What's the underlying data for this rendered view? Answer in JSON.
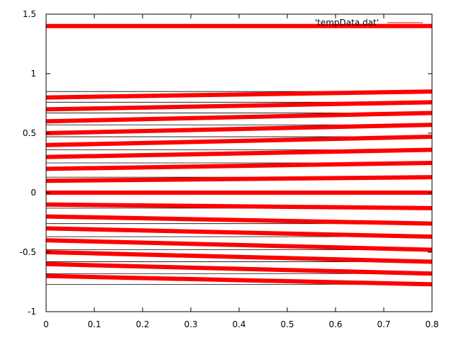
{
  "chart_data": {
    "type": "line",
    "title": "",
    "xlabel": "",
    "ylabel": "",
    "xlim": [
      0,
      0.8
    ],
    "ylim": [
      -1,
      1.5
    ],
    "xticks": [
      "0",
      "0.1",
      "0.2",
      "0.3",
      "0.4",
      "0.5",
      "0.6",
      "0.7",
      "0.8"
    ],
    "yticks": [
      "-1",
      "-0.5",
      "0",
      "0.5",
      "1",
      "1.5"
    ],
    "grid": false,
    "legend": {
      "position": "top-right",
      "entries": [
        "'tempData.dat'"
      ]
    },
    "series_color": "#ff0000",
    "series": [
      {
        "x": [
          0,
          0.8
        ],
        "y": [
          1.4,
          1.4
        ]
      },
      {
        "x": [
          0,
          0.8
        ],
        "y": [
          0.8,
          0.85
        ]
      },
      {
        "x": [
          0,
          0.8
        ],
        "y": [
          0.7,
          0.76
        ]
      },
      {
        "x": [
          0,
          0.8
        ],
        "y": [
          0.6,
          0.67
        ]
      },
      {
        "x": [
          0,
          0.8
        ],
        "y": [
          0.5,
          0.57
        ]
      },
      {
        "x": [
          0,
          0.8
        ],
        "y": [
          0.4,
          0.47
        ]
      },
      {
        "x": [
          0,
          0.8
        ],
        "y": [
          0.3,
          0.36
        ]
      },
      {
        "x": [
          0,
          0.8
        ],
        "y": [
          0.2,
          0.25
        ]
      },
      {
        "x": [
          0,
          0.8
        ],
        "y": [
          0.1,
          0.13
        ]
      },
      {
        "x": [
          0,
          0.8
        ],
        "y": [
          0.0,
          0.0
        ]
      },
      {
        "x": [
          0,
          0.8
        ],
        "y": [
          -0.1,
          -0.13
        ]
      },
      {
        "x": [
          0,
          0.8
        ],
        "y": [
          -0.2,
          -0.26
        ]
      },
      {
        "x": [
          0,
          0.8
        ],
        "y": [
          -0.3,
          -0.37
        ]
      },
      {
        "x": [
          0,
          0.8
        ],
        "y": [
          -0.4,
          -0.48
        ]
      },
      {
        "x": [
          0,
          0.8
        ],
        "y": [
          -0.5,
          -0.58
        ]
      },
      {
        "x": [
          0,
          0.8
        ],
        "y": [
          -0.6,
          -0.68
        ]
      },
      {
        "x": [
          0,
          0.8
        ],
        "y": [
          -0.7,
          -0.77
        ]
      }
    ],
    "reference_lines_y": [
      0.85,
      0.76,
      0.67,
      0.57,
      0.47,
      0.36,
      0.25,
      0.13,
      -0.13,
      -0.26,
      -0.37,
      -0.48,
      -0.58,
      -0.68,
      -0.77
    ]
  }
}
